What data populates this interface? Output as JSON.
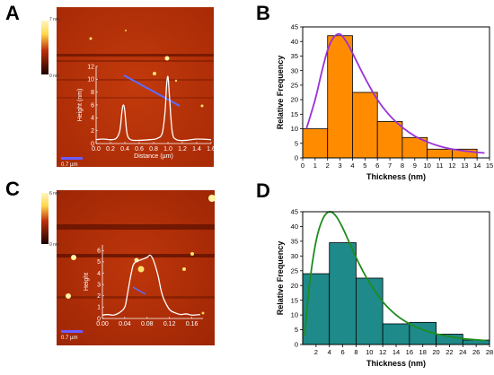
{
  "panels": {
    "A": "A",
    "B": "B",
    "C": "C",
    "D": "D"
  },
  "colorbar_a": {
    "top": "7 nm",
    "bottom": "0 nm"
  },
  "colorbar_c": {
    "top": "6 nm",
    "bottom": "0 nm"
  },
  "scalebar_a": "0.7 µm",
  "scalebar_c": "0.7 µm",
  "colors": {
    "bar_b": "#ff8c00",
    "bar_d": "#1f8a8a",
    "fit_b": "#9b30d9",
    "fit_d": "#1e8c1e",
    "afm_dark": "#5a1200",
    "afm_mid": "#b8320a",
    "afm_hi": "#ffd84a"
  },
  "chart_data": [
    {
      "id": "A_inset",
      "type": "line",
      "xlabel": "Distance (µm)",
      "ylabel": "Height (nm)",
      "xticks": [
        "0.0",
        "0.2",
        "0.4",
        "0.6",
        "0.8",
        "1.0",
        "1.2",
        "1.4",
        "1.6"
      ],
      "yticks": [
        "0",
        "2",
        "4",
        "6",
        "8",
        "10",
        "12"
      ],
      "xlim": [
        0,
        1.6
      ],
      "ylim": [
        0,
        12
      ],
      "x": [
        0.0,
        0.1,
        0.2,
        0.28,
        0.33,
        0.36,
        0.38,
        0.4,
        0.43,
        0.48,
        0.6,
        0.75,
        0.85,
        0.92,
        0.96,
        0.98,
        1.0,
        1.02,
        1.06,
        1.12,
        1.25,
        1.4,
        1.6
      ],
      "y": [
        0.6,
        0.7,
        0.6,
        0.8,
        2.0,
        5.0,
        6.0,
        5.0,
        1.6,
        0.6,
        0.5,
        0.6,
        0.8,
        1.6,
        5.0,
        9.0,
        10.4,
        7.5,
        1.8,
        0.6,
        0.5,
        0.7,
        0.6
      ]
    },
    {
      "id": "B",
      "type": "bar",
      "xlabel": "Thickness (nm)",
      "ylabel": "Relative Frequency",
      "xlim": [
        0,
        15
      ],
      "ylim": [
        0,
        45
      ],
      "xticks": [
        "0",
        "1",
        "2",
        "3",
        "4",
        "5",
        "6",
        "7",
        "8",
        "9",
        "10",
        "11",
        "12",
        "13",
        "14",
        "15"
      ],
      "yticks": [
        "0",
        "5",
        "10",
        "15",
        "20",
        "25",
        "30",
        "35",
        "40",
        "45"
      ],
      "bin_width": 2,
      "bin_centers": [
        1,
        3,
        5,
        7,
        9,
        11,
        13
      ],
      "values": [
        10,
        42,
        22.5,
        12.5,
        7,
        3,
        3
      ],
      "fit_x": [
        0.3,
        1,
        1.5,
        2,
        2.5,
        3,
        3.5,
        4,
        5,
        6,
        7,
        8,
        9,
        10,
        11,
        12,
        13,
        14,
        14.6
      ],
      "fit_y": [
        10,
        20,
        29,
        37,
        41.5,
        42.5,
        40,
        36,
        27.5,
        20,
        14.5,
        10.5,
        7.5,
        5.5,
        4,
        3,
        2.4,
        1.9,
        1.7
      ]
    },
    {
      "id": "C_inset",
      "type": "line",
      "xlabel": "",
      "ylabel": "Height",
      "xticks": [
        "0.00",
        "0.04",
        "0.08",
        "0.12",
        "0.16"
      ],
      "yticks": [
        "0",
        "1",
        "2",
        "3",
        "4",
        "5",
        "6"
      ],
      "xlim": [
        0,
        0.18
      ],
      "ylim": [
        0,
        6.5
      ],
      "x": [
        0.0,
        0.01,
        0.02,
        0.03,
        0.04,
        0.045,
        0.05,
        0.055,
        0.06,
        0.07,
        0.08,
        0.085,
        0.09,
        0.095,
        0.1,
        0.105,
        0.11,
        0.12,
        0.13,
        0.14,
        0.15,
        0.16,
        0.175
      ],
      "y": [
        0.3,
        0.35,
        0.3,
        0.5,
        1.0,
        2.2,
        3.6,
        4.7,
        5.0,
        5.2,
        5.4,
        5.6,
        5.3,
        4.6,
        3.7,
        2.5,
        1.7,
        0.8,
        0.5,
        0.35,
        0.4,
        0.3,
        0.35
      ]
    },
    {
      "id": "D",
      "type": "bar",
      "xlabel": "Thickness (nm)",
      "ylabel": "Relative Frequency",
      "xlim": [
        0,
        28
      ],
      "ylim": [
        0,
        45
      ],
      "xticks": [
        "2",
        "4",
        "6",
        "8",
        "10",
        "12",
        "14",
        "16",
        "18",
        "20",
        "22",
        "24",
        "26",
        "28"
      ],
      "yticks": [
        "0",
        "5",
        "10",
        "15",
        "20",
        "25",
        "30",
        "35",
        "40",
        "45"
      ],
      "bin_width": 4,
      "bin_centers": [
        2,
        6,
        10,
        14,
        18,
        22,
        26
      ],
      "values": [
        24,
        34.5,
        22.5,
        7,
        7.5,
        3.5,
        1.5
      ],
      "fit_x": [
        0.3,
        1,
        2,
        3,
        4,
        5,
        6,
        7,
        8,
        9,
        10,
        12,
        14,
        16,
        18,
        20,
        22,
        24,
        26,
        27.5
      ],
      "fit_y": [
        3,
        20,
        35,
        42.5,
        45,
        43.5,
        39.5,
        34.5,
        29.5,
        25,
        21,
        14.5,
        10,
        7,
        5,
        3.6,
        2.7,
        2,
        1.6,
        1.3
      ]
    }
  ]
}
